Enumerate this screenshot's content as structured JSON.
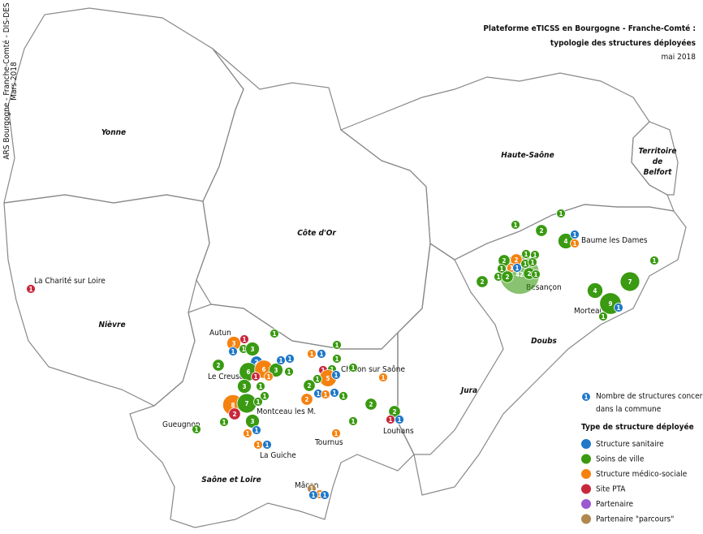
{
  "header": {
    "title_lines": [
      "Plateforme eTICSS en Bourgogne - Franche-Comté :",
      "typologie des structures déployées"
    ],
    "date": "mai 2018"
  },
  "credit": {
    "lines": [
      "ARS Bourgogne - Franche-Comté  -  DIS-DES",
      "Mars 2018"
    ]
  },
  "departments": [
    {
      "lines": [
        "Yonne"
      ]
    },
    {
      "lines": [
        "Nièvre"
      ]
    },
    {
      "lines": [
        "Côte d'Or"
      ]
    },
    {
      "lines": [
        "Haute-Saône"
      ]
    },
    {
      "lines": [
        "Territoire",
        "de",
        "Belfort"
      ]
    },
    {
      "lines": [
        "Doubs"
      ]
    },
    {
      "lines": [
        "Jura"
      ]
    },
    {
      "lines": [
        "Saône et Loire"
      ]
    }
  ],
  "cities": [
    "La Charité sur Loire",
    "Baume les Dames",
    "Besançon",
    "Morteau",
    "Autun",
    "Le Creusot",
    "Chalon sur Saône",
    "Montceau les M.",
    "Gueugnon",
    "Louhans",
    "Tournus",
    "La Guiche",
    "Mâcon"
  ],
  "legend": {
    "example_count": 1,
    "count_label_lines": [
      "Nombre de structures concernées",
      "dans la commune"
    ],
    "type_title": "Type de structure déployée",
    "types": [
      {
        "name": "Structure sanitaire",
        "color": "#1f78c8"
      },
      {
        "name": "Soins de ville",
        "color": "#3a9a12"
      },
      {
        "name": "Structure médico-sociale",
        "color": "#f5820f"
      },
      {
        "name": "Site PTA",
        "color": "#c8283c"
      },
      {
        "name": "Partenaire",
        "color": "#9b59d0"
      },
      {
        "name": "Partenaire \"parcours\"",
        "color": "#b08850"
      }
    ]
  },
  "markers": [
    {
      "type": "Site PTA",
      "count": 1
    },
    {
      "type": "Soins de ville",
      "count": 1
    },
    {
      "type": "Soins de ville",
      "count": 2
    },
    {
      "type": "Soins de ville",
      "count": 1
    },
    {
      "type": "Soins de ville",
      "count": 4
    },
    {
      "type": "Structure sanitaire",
      "count": 1
    },
    {
      "type": "Structure médico-sociale",
      "count": 1
    },
    {
      "type": "Soins de ville",
      "count": 1
    },
    {
      "type": "Soins de ville",
      "count": 2
    },
    {
      "type": "Soins de ville",
      "count": 42
    },
    {
      "type": "Soins de ville",
      "count": 2
    },
    {
      "type": "Structure médico-sociale",
      "count": 2
    },
    {
      "type": "Soins de ville",
      "count": 1
    },
    {
      "type": "Soins de ville",
      "count": 1
    },
    {
      "type": "Structure médico-sociale",
      "count": 1
    },
    {
      "type": "Structure sanitaire",
      "count": 1
    },
    {
      "type": "Soins de ville",
      "count": 1
    },
    {
      "type": "Soins de ville",
      "count": 1
    },
    {
      "type": "Soins de ville",
      "count": 1
    },
    {
      "type": "Soins de ville",
      "count": 1
    },
    {
      "type": "Soins de ville",
      "count": 2
    },
    {
      "type": "Soins de ville",
      "count": 2
    },
    {
      "type": "Soins de ville",
      "count": 1
    },
    {
      "type": "Soins de ville",
      "count": 4
    },
    {
      "type": "Soins de ville",
      "count": 7
    },
    {
      "type": "Soins de ville",
      "count": 9
    },
    {
      "type": "Structure sanitaire",
      "count": 1
    },
    {
      "type": "Soins de ville",
      "count": 1
    },
    {
      "type": "Soins de ville",
      "count": 1
    },
    {
      "type": "Structure médico-sociale",
      "count": 3
    },
    {
      "type": "Site PTA",
      "count": 1
    },
    {
      "type": "Structure sanitaire",
      "count": 1
    },
    {
      "type": "Soins de ville",
      "count": 1
    },
    {
      "type": "Soins de ville",
      "count": 3
    },
    {
      "type": "Soins de ville",
      "count": 2
    },
    {
      "type": "Structure sanitaire",
      "count": 2
    },
    {
      "type": "Soins de ville",
      "count": 6
    },
    {
      "type": "Structure médico-sociale",
      "count": 6
    },
    {
      "type": "Soins de ville",
      "count": 3
    },
    {
      "type": "Soins de ville",
      "count": 1
    },
    {
      "type": "Structure sanitaire",
      "count": 1
    },
    {
      "type": "Structure sanitaire",
      "count": 1
    },
    {
      "type": "Site PTA",
      "count": 1
    },
    {
      "type": "Structure médico-sociale",
      "count": 1
    },
    {
      "type": "Soins de ville",
      "count": 3
    },
    {
      "type": "Soins de ville",
      "count": 1
    },
    {
      "type": "Structure médico-sociale",
      "count": 8
    },
    {
      "type": "Soins de ville",
      "count": 7
    },
    {
      "type": "Site PTA",
      "count": 2
    },
    {
      "type": "Soins de ville",
      "count": 1
    },
    {
      "type": "Soins de ville",
      "count": 1
    },
    {
      "type": "Soins de ville",
      "count": 1
    },
    {
      "type": "Soins de ville",
      "count": 1
    },
    {
      "type": "Soins de ville",
      "count": 3
    },
    {
      "type": "Structure sanitaire",
      "count": 1
    },
    {
      "type": "Structure médico-sociale",
      "count": 1
    },
    {
      "type": "Structure médico-sociale",
      "count": 1
    },
    {
      "type": "Structure sanitaire",
      "count": 1
    },
    {
      "type": "Structure médico-sociale",
      "count": 1
    },
    {
      "type": "Structure sanitaire",
      "count": 1
    },
    {
      "type": "Soins de ville",
      "count": 1
    },
    {
      "type": "Soins de ville",
      "count": 1
    },
    {
      "type": "Site PTA",
      "count": 1
    },
    {
      "type": "Soins de ville",
      "count": 1
    },
    {
      "type": "Structure médico-sociale",
      "count": 5
    },
    {
      "type": "Structure sanitaire",
      "count": 1
    },
    {
      "type": "Soins de ville",
      "count": 1
    },
    {
      "type": "Soins de ville",
      "count": 2
    },
    {
      "type": "Structure médico-sociale",
      "count": 2
    },
    {
      "type": "Structure sanitaire",
      "count": 1
    },
    {
      "type": "Structure médico-sociale",
      "count": 1
    },
    {
      "type": "Structure sanitaire",
      "count": 1
    },
    {
      "type": "Soins de ville",
      "count": 1
    },
    {
      "type": "Soins de ville",
      "count": 1
    },
    {
      "type": "Structure médico-sociale",
      "count": 1
    },
    {
      "type": "Soins de ville",
      "count": 2
    },
    {
      "type": "Soins de ville",
      "count": 1
    },
    {
      "type": "Structure médico-sociale",
      "count": 1
    },
    {
      "type": "Soins de ville",
      "count": 2
    },
    {
      "type": "Site PTA",
      "count": 1
    },
    {
      "type": "Structure sanitaire",
      "count": 1
    },
    {
      "type": "Partenaire \"parcours\"",
      "count": 1
    },
    {
      "type": "Structure médico-sociale",
      "count": 1
    },
    {
      "type": "Structure sanitaire",
      "count": 1
    },
    {
      "type": "Structure sanitaire",
      "count": 1
    }
  ]
}
